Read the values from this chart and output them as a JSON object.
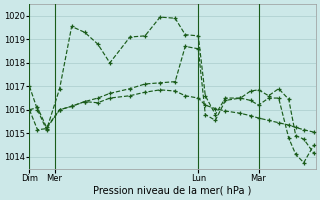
{
  "title": "Pression niveau de la mer( hPa )",
  "bg_color": "#cce8e8",
  "grid_color": "#aacccc",
  "line_color": "#1a5c1a",
  "ylim": [
    1013.5,
    1020.5
  ],
  "yticks": [
    1014,
    1015,
    1016,
    1017,
    1018,
    1019,
    1020
  ],
  "day_labels": [
    "Dim",
    "Mer",
    "Lun",
    "Mar"
  ],
  "day_positions": [
    0,
    25,
    168,
    228
  ],
  "vline_positions": [
    0,
    25,
    168,
    228
  ],
  "xlim": [
    0,
    285
  ],
  "series1": {
    "x": [
      0,
      8,
      17,
      30,
      42,
      55,
      68,
      80,
      100,
      115,
      130,
      145,
      155,
      168,
      175,
      185,
      195,
      210,
      220,
      228,
      238,
      248,
      258,
      265,
      273,
      283
    ],
    "y": [
      1017.0,
      1016.0,
      1015.15,
      1016.9,
      1019.55,
      1019.3,
      1018.8,
      1018.0,
      1019.1,
      1019.15,
      1019.95,
      1019.9,
      1019.2,
      1019.15,
      1016.6,
      1015.8,
      1016.5,
      1016.5,
      1016.8,
      1016.85,
      1016.6,
      1016.9,
      1016.45,
      1014.9,
      1014.75,
      1014.15
    ]
  },
  "series2": {
    "x": [
      0,
      8,
      17,
      30,
      42,
      55,
      68,
      80,
      100,
      115,
      130,
      145,
      155,
      168,
      175,
      185,
      195,
      210,
      220,
      228,
      238,
      248,
      258,
      265,
      273,
      283
    ],
    "y": [
      1016.0,
      1016.1,
      1015.25,
      1016.0,
      1016.15,
      1016.35,
      1016.3,
      1016.5,
      1016.6,
      1016.75,
      1016.85,
      1016.8,
      1016.6,
      1016.5,
      1016.2,
      1016.05,
      1015.95,
      1015.85,
      1015.75,
      1015.65,
      1015.55,
      1015.45,
      1015.35,
      1015.25,
      1015.15,
      1015.05
    ]
  },
  "series3": {
    "x": [
      0,
      8,
      17,
      30,
      42,
      55,
      68,
      80,
      100,
      115,
      130,
      145,
      155,
      168,
      175,
      185,
      195,
      210,
      220,
      228,
      238,
      248,
      258,
      265,
      273,
      283
    ],
    "y": [
      1016.0,
      1015.15,
      1015.2,
      1016.0,
      1016.15,
      1016.35,
      1016.5,
      1016.7,
      1016.9,
      1017.1,
      1017.15,
      1017.2,
      1018.7,
      1018.6,
      1015.8,
      1015.55,
      1016.4,
      1016.5,
      1016.4,
      1016.2,
      1016.5,
      1016.5,
      1014.8,
      1014.1,
      1013.75,
      1014.5
    ]
  }
}
